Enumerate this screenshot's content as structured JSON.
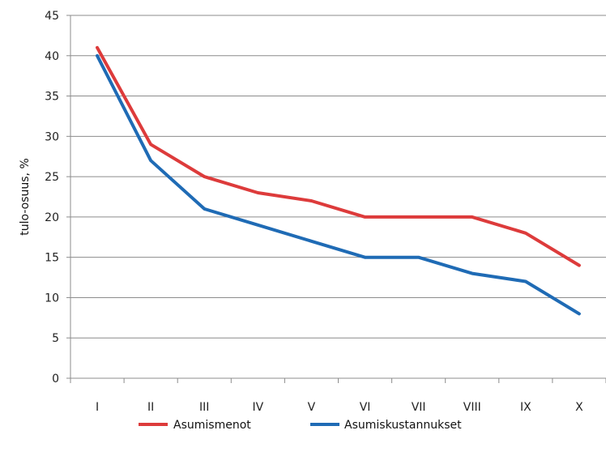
{
  "chart_data": {
    "type": "line",
    "title": "",
    "xlabel": "",
    "ylabel": "tulo-osuus, %",
    "categories": [
      "I",
      "II",
      "III",
      "IV",
      "V",
      "VI",
      "VII",
      "VIII",
      "IX",
      "X"
    ],
    "ylim": [
      0,
      45
    ],
    "yticks": [
      0,
      5,
      10,
      15,
      20,
      25,
      30,
      35,
      40,
      45
    ],
    "grid": "horizontal",
    "legend_position": "bottom",
    "series": [
      {
        "name": "Asumismenot",
        "color": "#dd3b3b",
        "values": [
          41,
          29,
          25,
          23,
          22,
          20,
          20,
          20,
          18,
          14
        ]
      },
      {
        "name": "Asumiskustannukset",
        "color": "#1f6bb5",
        "values": [
          40,
          27,
          21,
          19,
          17,
          15,
          15,
          13,
          12,
          8
        ]
      }
    ]
  }
}
